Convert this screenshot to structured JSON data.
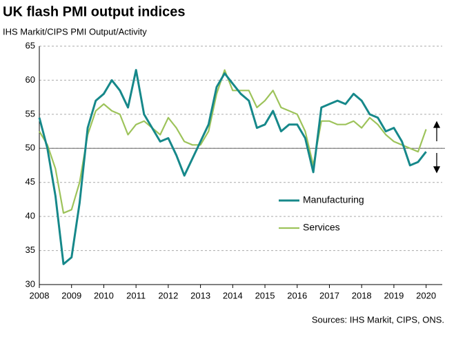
{
  "chart_data": {
    "type": "line",
    "title": "UK flash PMI output indices",
    "subtitle": "IHS Markit/CIPS PMI Output/Activity",
    "source": "Sources: IHS Markit, CIPS, ONS.",
    "x": [
      2008,
      2008.25,
      2008.5,
      2008.75,
      2009,
      2009.25,
      2009.5,
      2009.75,
      2010,
      2010.25,
      2010.5,
      2010.75,
      2011,
      2011.25,
      2011.5,
      2011.75,
      2012,
      2012.25,
      2012.5,
      2012.75,
      2013,
      2013.25,
      2013.5,
      2013.75,
      2014,
      2014.25,
      2014.5,
      2014.75,
      2015,
      2015.25,
      2015.5,
      2015.75,
      2016,
      2016.25,
      2016.5,
      2016.75,
      2017,
      2017.25,
      2017.5,
      2017.75,
      2018,
      2018.25,
      2018.5,
      2018.75,
      2019,
      2019.25,
      2019.5,
      2019.75,
      2020
    ],
    "series": [
      {
        "name": "Manufacturing",
        "color": "#16888a",
        "values": [
          54.5,
          50,
          43,
          33,
          34,
          42,
          53,
          57,
          58,
          60,
          58.5,
          56,
          61.5,
          55,
          53,
          51,
          51.5,
          49,
          46,
          48.5,
          51,
          53.5,
          59,
          61,
          59.5,
          58,
          57,
          53,
          53.5,
          55.5,
          52.5,
          53.5,
          53.5,
          51.5,
          46.5,
          56,
          56.5,
          57,
          56.5,
          58,
          57,
          55,
          54.5,
          52.5,
          53,
          51,
          47.5,
          48,
          49.5
        ]
      },
      {
        "name": "Services",
        "color": "#9dc35a",
        "values": [
          52.5,
          50.5,
          47,
          40.5,
          41,
          45,
          52,
          55.5,
          56.5,
          55.5,
          55,
          52,
          53.5,
          54,
          53,
          52,
          54.5,
          53,
          51,
          50.5,
          50.5,
          52.5,
          58,
          61.5,
          58.5,
          58.5,
          58.5,
          56,
          57,
          58.5,
          56,
          55.5,
          55,
          52.5,
          47.5,
          54,
          54,
          53.5,
          53.5,
          54,
          53,
          54.5,
          53.5,
          52,
          51,
          50.5,
          50,
          49.5,
          52.8
        ]
      }
    ],
    "xlim": [
      2008,
      2020.5
    ],
    "xticks": [
      2008,
      2009,
      2010,
      2011,
      2012,
      2013,
      2014,
      2015,
      2016,
      2017,
      2018,
      2019,
      2020
    ],
    "ylim": [
      30,
      65
    ],
    "yticks": [
      30,
      35,
      40,
      45,
      50,
      55,
      60,
      65
    ],
    "reference_line": 50,
    "grid": true
  }
}
